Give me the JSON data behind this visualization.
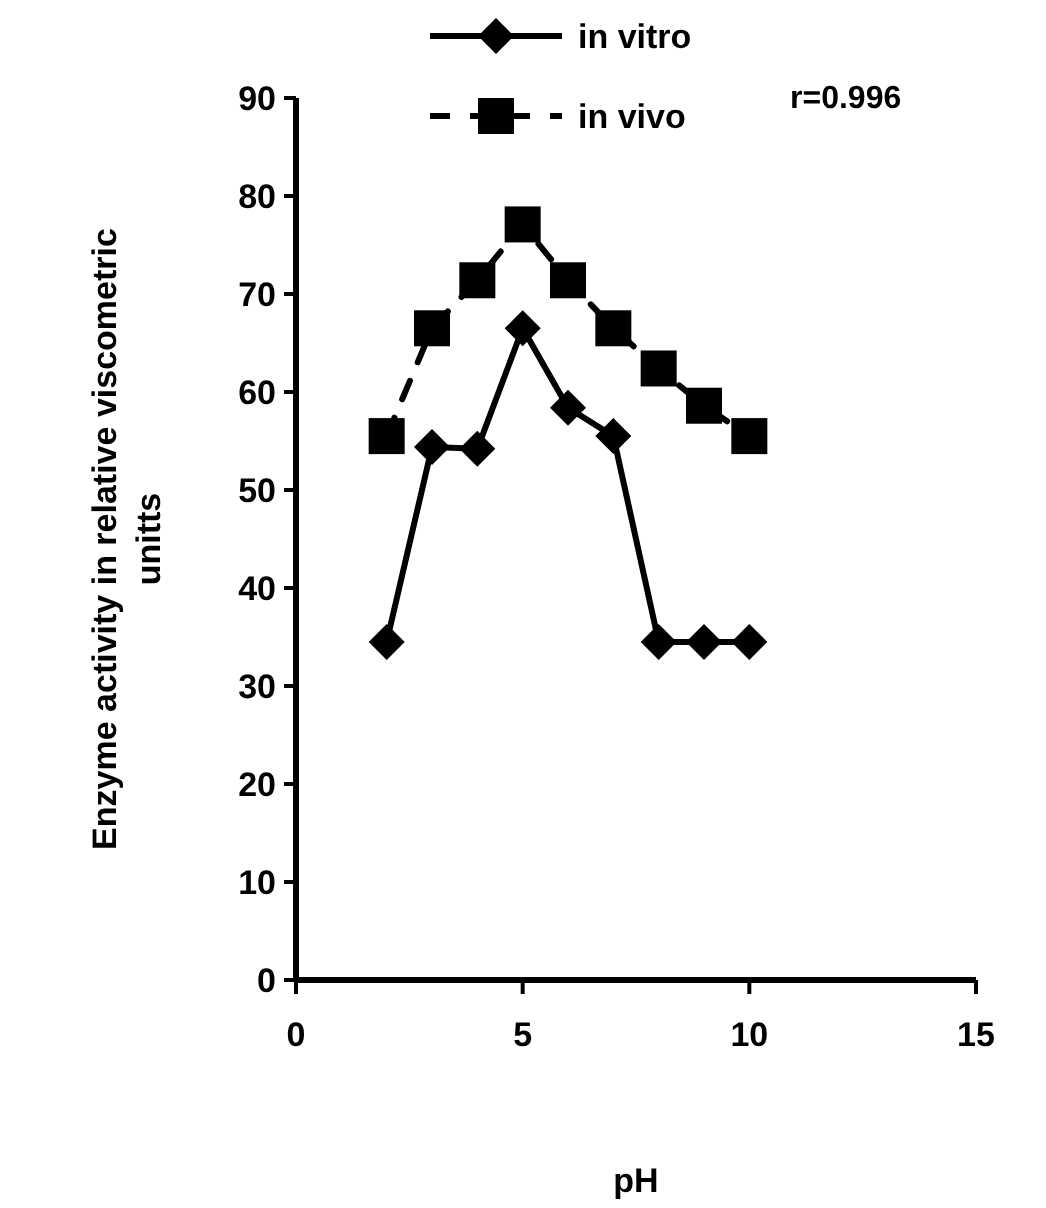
{
  "chart_data": {
    "type": "line",
    "xlabel": "pH",
    "ylabel": "Enzyme activity in relative viscometric unitts",
    "annotations": [
      "r=0.996"
    ],
    "xlim": [
      0,
      15
    ],
    "xticks": [
      0,
      5,
      10,
      15
    ],
    "ylim": [
      0,
      90
    ],
    "yticks": [
      0,
      10,
      20,
      30,
      40,
      50,
      60,
      70,
      80,
      90
    ],
    "grid": false,
    "legend": "top left",
    "x": [
      2,
      3,
      4,
      5,
      6,
      7,
      8,
      9,
      10
    ],
    "series": [
      {
        "name": "in vitro",
        "color": "#000000",
        "marker": "diamond",
        "line_style": "solid",
        "values": [
          34.5,
          54.4,
          54.2,
          66.5,
          58.4,
          55.5,
          34.5,
          34.5,
          34.5
        ]
      },
      {
        "name": "in vivo",
        "color": "#000000",
        "marker": "square",
        "line_style": "dashed",
        "values": [
          55.5,
          66.5,
          71.4,
          77.1,
          71.4,
          66.5,
          62.4,
          58.6,
          55.5
        ]
      }
    ]
  }
}
